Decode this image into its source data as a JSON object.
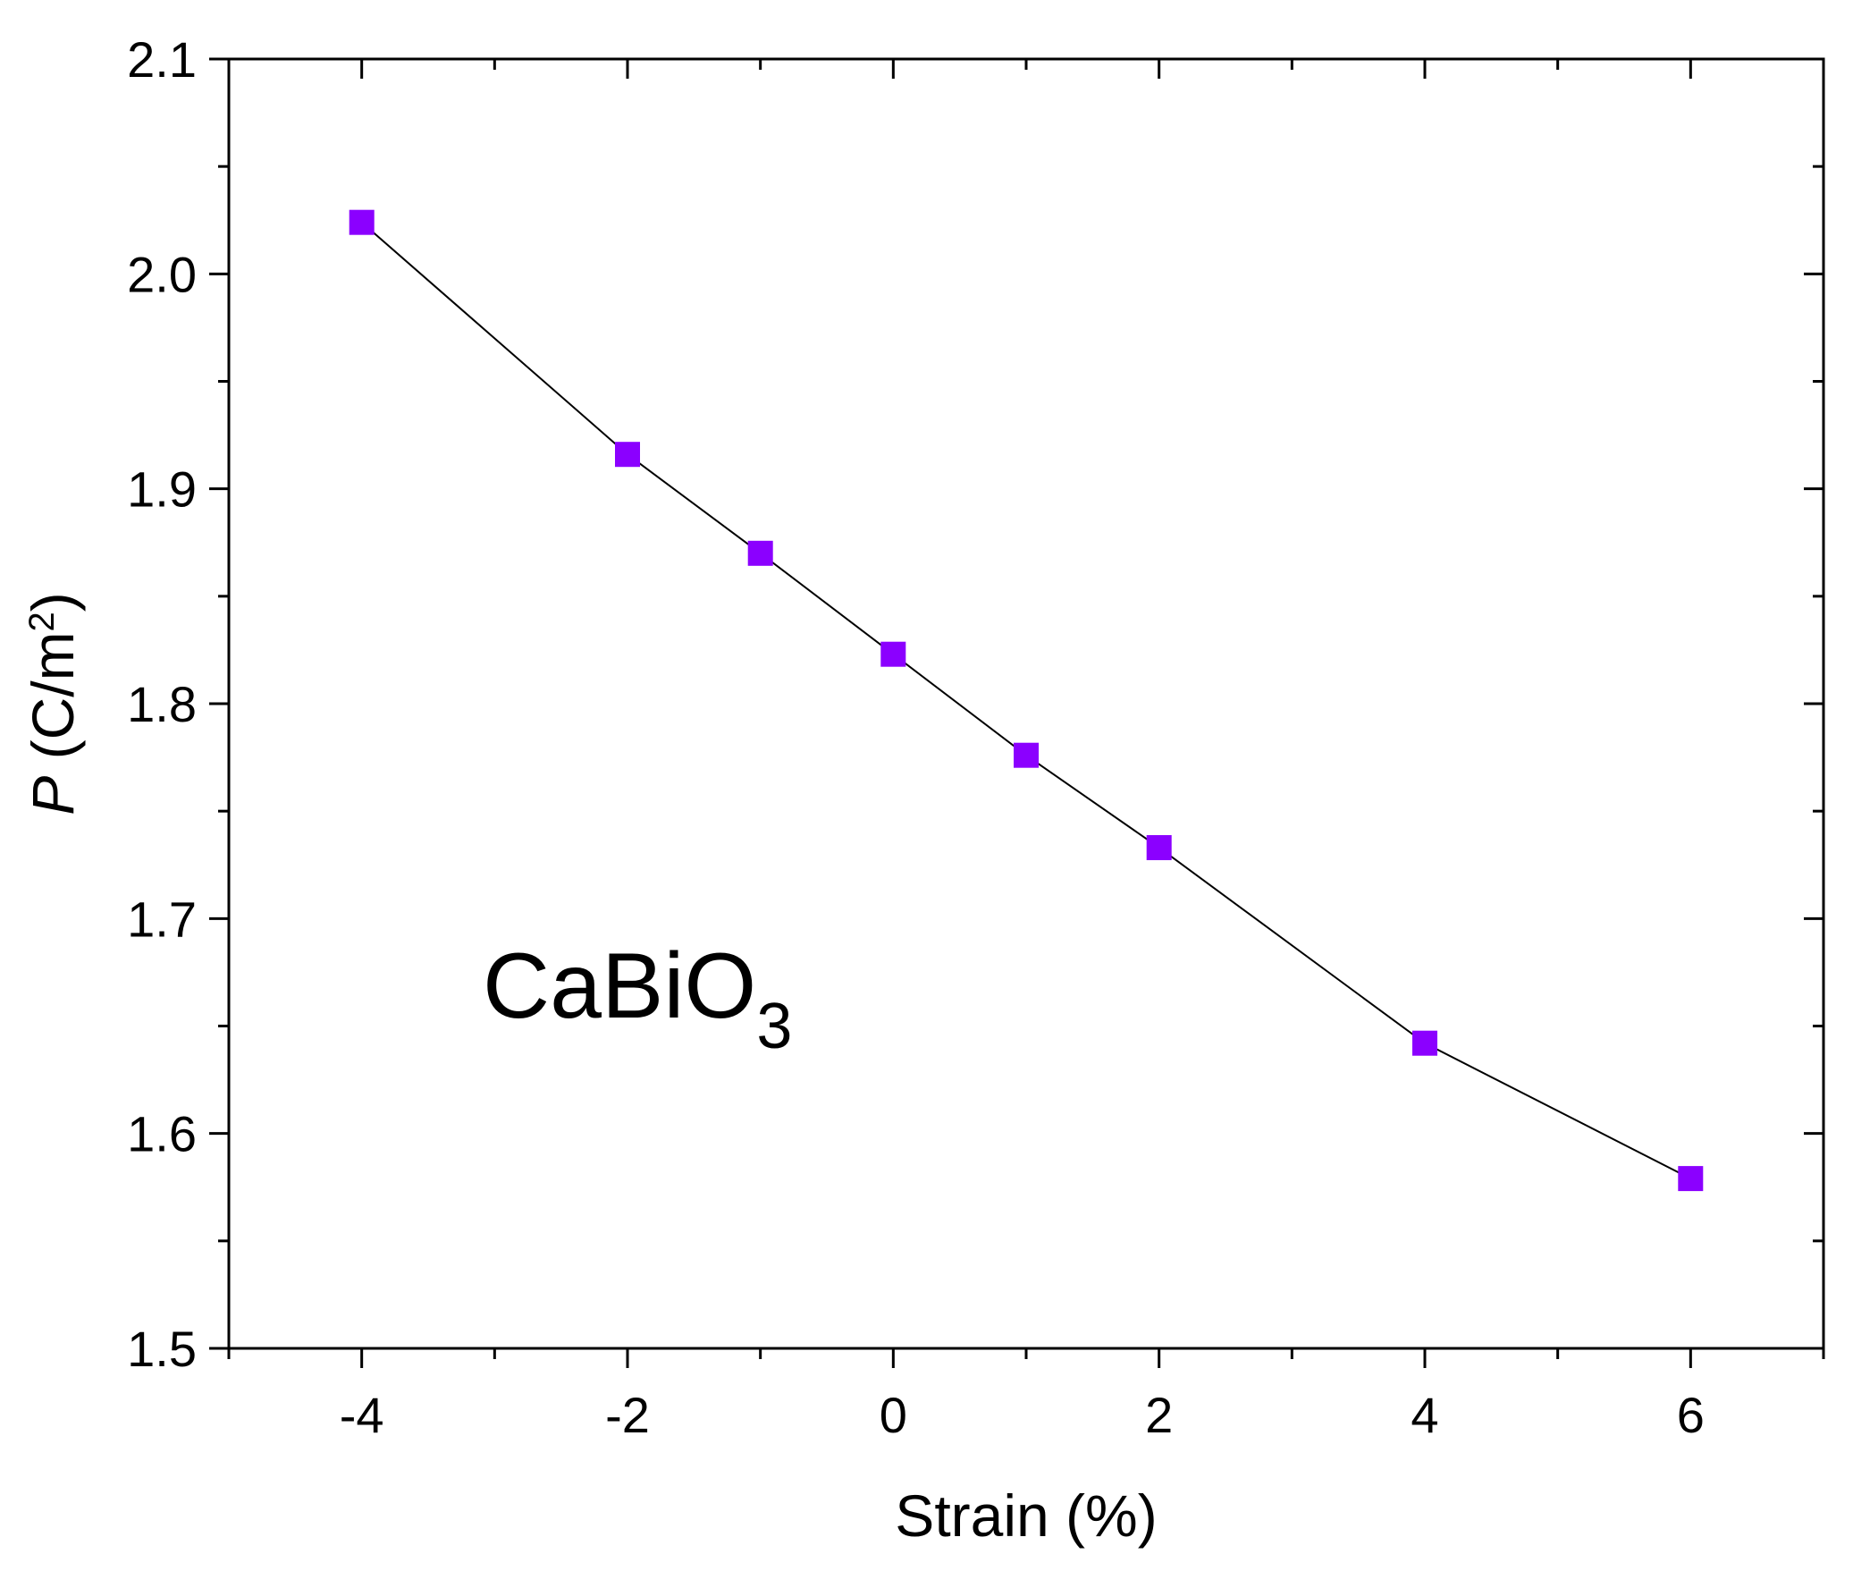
{
  "chart_data": {
    "type": "line",
    "title": "",
    "xlabel": "Strain (%)",
    "ylabel": {
      "symbol": "P",
      "units_prefix": " (C/m",
      "units_exponent": "2",
      "units_suffix": ")"
    },
    "xlim": [
      -5,
      7
    ],
    "ylim": [
      1.5,
      2.1
    ],
    "x_ticks": [
      -4,
      -2,
      0,
      2,
      4,
      6
    ],
    "x_tick_labels": [
      "-4",
      "-2",
      "0",
      "2",
      "4",
      "6"
    ],
    "x_minor_ticks": [
      -5,
      -3,
      -1,
      1,
      3,
      5,
      7
    ],
    "y_ticks": [
      1.5,
      1.6,
      1.7,
      1.8,
      1.9,
      2.0,
      2.1
    ],
    "y_tick_labels": [
      "1.5",
      "1.6",
      "1.7",
      "1.8",
      "1.9",
      "2.0",
      "2.1"
    ],
    "y_minor_ticks": [
      1.55,
      1.65,
      1.75,
      1.85,
      1.95,
      2.05
    ],
    "grid": false,
    "series": [
      {
        "name": "CaBiO3",
        "marker": "square",
        "marker_color": "#8B00FF",
        "line_color": "#000000",
        "x": [
          -4,
          -2,
          -1,
          0,
          1,
          2,
          4,
          6
        ],
        "y": [
          2.024,
          1.916,
          1.87,
          1.823,
          1.776,
          1.733,
          1.642,
          1.579
        ]
      }
    ],
    "annotations": [
      {
        "base": "CaBiO",
        "subscript": "3"
      }
    ]
  }
}
